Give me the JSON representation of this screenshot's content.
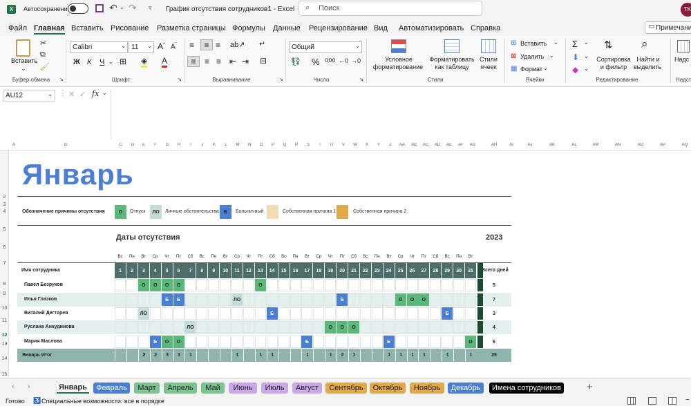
{
  "titlebar": {
    "autosave": "Автосохранение",
    "doc_title": "График отсутствия сотрудников1  -  Excel",
    "search_placeholder": "Поиск",
    "avatar": "TK"
  },
  "menu": [
    "Файл",
    "Главная",
    "Вставить",
    "Рисование",
    "Разметка страницы",
    "Формулы",
    "Данные",
    "Рецензирование",
    "Вид",
    "Автоматизировать",
    "Справка"
  ],
  "notes_btn": "Примечания",
  "ribbon": {
    "paste": "Вставить",
    "clipboard": "Буфер обмена",
    "font_name": "Calibri",
    "font_size": "11",
    "font_group": "Шрифт",
    "align_group": "Выравнивание",
    "number_format": "Общий",
    "number_group": "Число",
    "cond_format_1": "Условное",
    "cond_format_2": "форматирование",
    "format_table_1": "Форматировать",
    "format_table_2": "как таблицу",
    "cell_styles_1": "Стили",
    "cell_styles_2": "ячеек",
    "styles_group": "Стили",
    "insert": "Вставить",
    "delete": "Удалить",
    "format": "Формат",
    "cells_group": "Ячейки",
    "sort_1": "Сортировка",
    "sort_2": "и фильтр",
    "find_1": "Найти и",
    "find_2": "выделить",
    "edit_group": "Редактирование",
    "addins_1": "Надс",
    "addins_group": "Надст"
  },
  "namebox": "AU12",
  "sheet": {
    "month": "Январь",
    "legend_title": "Обозначение причины отсутствия",
    "legend": [
      {
        "code": "О",
        "label": "Отпуск",
        "color": "#5cb87a"
      },
      {
        "code": "ЛО",
        "label": "Личные обстоятельства",
        "color": "#c5dbd8"
      },
      {
        "code": "Б",
        "label": "Больничный",
        "color": "#4a7fd4"
      },
      {
        "code": "",
        "label": "Собственная причина 1",
        "color": "#f2dcb4"
      },
      {
        "code": "",
        "label": "Собственная причина 2",
        "color": "#e0a94a"
      }
    ],
    "dates_title": "Даты отсутствия",
    "year": "2023",
    "weekdays": [
      "Вс",
      "Пн",
      "Вт",
      "Ср",
      "Чт",
      "Пт",
      "Сб",
      "Вс",
      "Пн",
      "Вт",
      "Ср",
      "Чт",
      "Пт",
      "Сб",
      "Вс",
      "Пн",
      "Вт",
      "Ср",
      "Чт",
      "Пт",
      "Сб",
      "Вс",
      "Пн",
      "Вт",
      "Ср",
      "Чт",
      "Пт",
      "Сб",
      "Вс",
      "Пн",
      "Вт"
    ],
    "name_header": "Имя сотрудника",
    "total_header": "Всего дней",
    "employees": [
      {
        "name": "Павел Безруков",
        "marks": {
          "3": "О",
          "4": "О",
          "5": "О",
          "6": "О",
          "13": "О"
        },
        "total": "5"
      },
      {
        "name": "Илья Глазков",
        "marks": {
          "5": "Б",
          "6": "Б",
          "11": "ЛО",
          "20": "Б",
          "25": "О",
          "26": "О",
          "27": "О"
        },
        "total": "7"
      },
      {
        "name": "Виталий Дегтярев",
        "marks": {
          "3": "ЛО",
          "14": "Б",
          "29": "Б"
        },
        "total": "3"
      },
      {
        "name": "Руслана Анкудинова",
        "marks": {
          "7": "ЛО",
          "19": "О",
          "20": "О",
          "21": "О"
        },
        "total": "4"
      },
      {
        "name": "Мария Маслова",
        "marks": {
          "4": "Б",
          "5": "О",
          "6": "О",
          "17": "Б",
          "24": "Б",
          "31": "О"
        },
        "total": "6"
      }
    ],
    "total_row": {
      "label": "Январь Итог",
      "values": [
        "",
        "",
        "2",
        "2",
        "3",
        "3",
        "1",
        "",
        "",
        "",
        "1",
        "",
        "1",
        "1",
        "",
        "",
        "1",
        "",
        "1",
        "2",
        "1",
        "",
        "",
        "1",
        "1",
        "1",
        "1",
        "",
        "1",
        "",
        "1"
      ],
      "total": "25"
    }
  },
  "col_headers": [
    "A",
    "B",
    "C",
    "D",
    "E",
    "F",
    "G",
    "H",
    "I",
    "J",
    "K",
    "L",
    "M",
    "N",
    "O",
    "P",
    "Q",
    "R",
    "S",
    "T",
    "U",
    "V",
    "W",
    "X",
    "Y",
    "Z",
    "AA",
    "AB",
    "AC",
    "AD",
    "AE",
    "AF",
    "AG",
    "AH",
    "AI",
    "AJ",
    "AK",
    "AL",
    "AM",
    "AN",
    "AO",
    "AP",
    "AQ"
  ],
  "row_headers": [
    "2",
    "3",
    "4",
    "5",
    "6",
    "7",
    "8",
    "9",
    "10",
    "11",
    "12",
    "13",
    "14",
    "15"
  ],
  "tabs": [
    {
      "label": "Январь",
      "color": "#ffffff",
      "text": "#222"
    },
    {
      "label": "Февраль",
      "color": "#4a7fd4",
      "text": "#fff"
    },
    {
      "label": "Март",
      "color": "#7dc38f",
      "text": "#222"
    },
    {
      "label": "Апрель",
      "color": "#7dc38f",
      "text": "#222"
    },
    {
      "label": "Май",
      "color": "#7dc38f",
      "text": "#222"
    },
    {
      "label": "Июнь",
      "color": "#c9a8e8",
      "text": "#222"
    },
    {
      "label": "Июль",
      "color": "#c9a8e8",
      "text": "#222"
    },
    {
      "label": "Август",
      "color": "#c9a8e8",
      "text": "#222"
    },
    {
      "label": "Сентябрь",
      "color": "#e0a94a",
      "text": "#222"
    },
    {
      "label": "Октябрь",
      "color": "#e0a94a",
      "text": "#222"
    },
    {
      "label": "Ноябрь",
      "color": "#e0a94a",
      "text": "#222"
    },
    {
      "label": "Декабрь",
      "color": "#4a7fd4",
      "text": "#fff"
    },
    {
      "label": "Имена сотрудников",
      "color": "#000000",
      "text": "#fff"
    }
  ],
  "status": {
    "ready": "Готово",
    "accessibility": "Специальные возможности: все в порядке"
  }
}
